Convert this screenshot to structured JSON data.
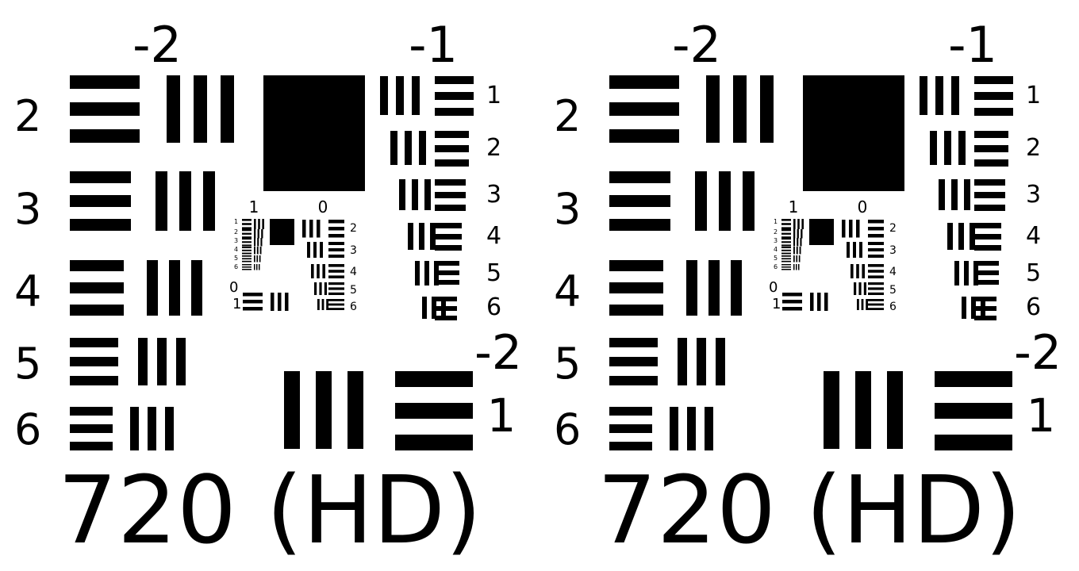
{
  "colors": {
    "background": "#ffffff",
    "ink": "#000000"
  },
  "chart": {
    "group_labels": {
      "top_left": "-2",
      "top_right": "-1",
      "bottom_right": "-2",
      "bottom_right_element": "1"
    },
    "left_element_labels": [
      "2",
      "3",
      "4",
      "5",
      "6"
    ],
    "right_element_labels": [
      "1",
      "2",
      "3",
      "4",
      "5",
      "6"
    ],
    "inner": {
      "group_left": "1",
      "group_right": "0",
      "left_element_labels": [
        "1",
        "2",
        "3",
        "4",
        "5",
        "6"
      ],
      "right_element_labels": [
        "2",
        "3",
        "4",
        "5",
        "6"
      ],
      "bottom_group": "0",
      "bottom_element": "1"
    },
    "caption": "720 (HD)"
  },
  "panels": [
    {
      "name": "left-test-chart"
    },
    {
      "name": "right-test-chart"
    }
  ]
}
